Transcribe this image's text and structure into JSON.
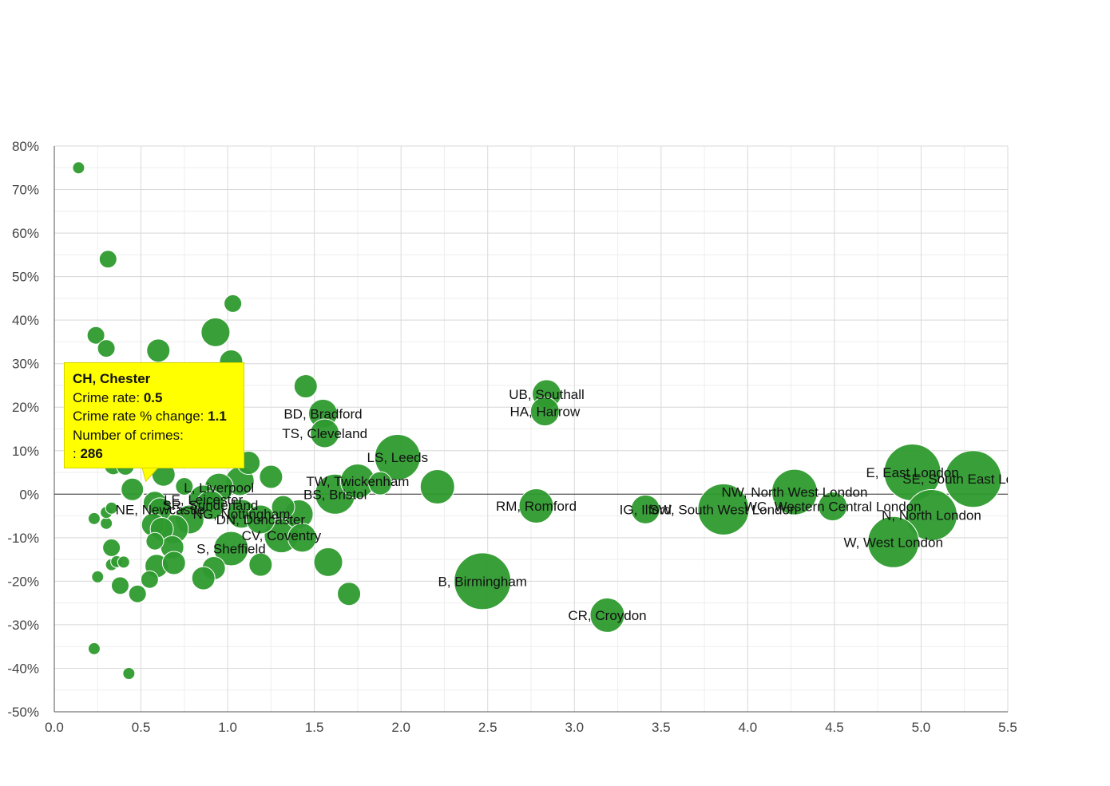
{
  "chart_data": {
    "type": "scatter",
    "subtype": "bubble",
    "title": "",
    "xlabel": "",
    "ylabel": "",
    "xlim": [
      0,
      5.5
    ],
    "ylim": [
      -50,
      80
    ],
    "x_ticks": [
      "0.0",
      "0.5",
      "1.0",
      "1.5",
      "2.0",
      "2.5",
      "3.0",
      "3.5",
      "4.0",
      "4.5",
      "5.0",
      "5.5"
    ],
    "y_ticks": [
      "80%",
      "70%",
      "60%",
      "50%",
      "40%",
      "30%",
      "20%",
      "10%",
      "0%",
      "-10%",
      "-20%",
      "-30%",
      "-40%",
      "-50%"
    ],
    "grid": true,
    "colors": {
      "bubble": "#2e9a2e",
      "tooltip_bg": "#ffff00",
      "grid": "#d9d9d9",
      "axis": "#333333"
    },
    "points": [
      {
        "x": 0.14,
        "y": 75,
        "r": 1
      },
      {
        "x": 0.31,
        "y": 54,
        "r": 2
      },
      {
        "x": 0.24,
        "y": 36.5,
        "r": 2
      },
      {
        "x": 0.3,
        "y": 33.5,
        "r": 2
      },
      {
        "x": 0.6,
        "y": 33,
        "r": 3
      },
      {
        "x": 0.93,
        "y": 37.2,
        "r": 4
      },
      {
        "x": 1.03,
        "y": 43.8,
        "r": 2
      },
      {
        "x": 1.02,
        "y": 30.5,
        "r": 3
      },
      {
        "x": 1.45,
        "y": 24.8,
        "r": 3
      },
      {
        "x": 1.55,
        "y": 18.5,
        "r": 4,
        "label": "BD, Bradford"
      },
      {
        "x": 1.56,
        "y": 14,
        "r": 4,
        "label": "TS, Cleveland"
      },
      {
        "x": 1.98,
        "y": 8.5,
        "r": 7,
        "label": "LS, Leeds"
      },
      {
        "x": 2.21,
        "y": 1.7,
        "r": 5
      },
      {
        "x": 1.88,
        "y": 2.5,
        "r": 3
      },
      {
        "x": 1.75,
        "y": 3,
        "r": 5,
        "label": "TW, Twickenham"
      },
      {
        "x": 1.62,
        "y": 0,
        "r": 6,
        "label": "BS, Bristol"
      },
      {
        "x": 1.25,
        "y": 4,
        "r": 3
      },
      {
        "x": 1.12,
        "y": 7.2,
        "r": 3
      },
      {
        "x": 1.07,
        "y": 3,
        "r": 4
      },
      {
        "x": 0.95,
        "y": 1.5,
        "r": 4,
        "label": "L, Liverpool"
      },
      {
        "x": 0.75,
        "y": 1.8,
        "r": 2
      },
      {
        "x": 0.63,
        "y": 4.5,
        "r": 3
      },
      {
        "x": 0.34,
        "y": 6.5,
        "r": 2
      },
      {
        "x": 0.41,
        "y": 6.4,
        "r": 2
      },
      {
        "x": 0.45,
        "y": 1.1,
        "r": 3
      },
      {
        "x": 0.58,
        "y": -2,
        "r": 3
      },
      {
        "x": 0.61,
        "y": -3.5,
        "r": 3,
        "label": "NE, Newcastle"
      },
      {
        "x": 0.86,
        "y": -1.2,
        "r": 4,
        "label": "LE, Leicester"
      },
      {
        "x": 0.9,
        "y": -2.5,
        "r": 4,
        "label": "SR, Sunderland"
      },
      {
        "x": 1.08,
        "y": -4.5,
        "r": 4,
        "label": "NG, Nottingham"
      },
      {
        "x": 1.19,
        "y": -5.8,
        "r": 4,
        "label": "DN, Doncaster"
      },
      {
        "x": 1.32,
        "y": -3,
        "r": 3
      },
      {
        "x": 1.41,
        "y": -4.6,
        "r": 4
      },
      {
        "x": 0.78,
        "y": -5.8,
        "r": 4
      },
      {
        "x": 0.57,
        "y": -7,
        "r": 3
      },
      {
        "x": 0.62,
        "y": -8,
        "r": 3
      },
      {
        "x": 0.69,
        "y": -8,
        "r": 4
      },
      {
        "x": 0.58,
        "y": -10.8,
        "r": 2
      },
      {
        "x": 0.68,
        "y": -12.2,
        "r": 3
      },
      {
        "x": 1.31,
        "y": -9.5,
        "r": 5,
        "label": "CV, Coventry"
      },
      {
        "x": 1.43,
        "y": -10,
        "r": 4
      },
      {
        "x": 1.02,
        "y": -12.5,
        "r": 5,
        "label": "S, Sheffield"
      },
      {
        "x": 0.59,
        "y": -16.5,
        "r": 3
      },
      {
        "x": 0.69,
        "y": -15.8,
        "r": 3
      },
      {
        "x": 0.92,
        "y": -17,
        "r": 3
      },
      {
        "x": 1.19,
        "y": -16.2,
        "r": 3
      },
      {
        "x": 1.58,
        "y": -15.6,
        "r": 4
      },
      {
        "x": 0.86,
        "y": -19.3,
        "r": 3
      },
      {
        "x": 0.55,
        "y": -19.6,
        "r": 2
      },
      {
        "x": 0.38,
        "y": -21,
        "r": 2
      },
      {
        "x": 0.48,
        "y": -22.9,
        "r": 2
      },
      {
        "x": 1.7,
        "y": -22.9,
        "r": 3
      },
      {
        "x": 0.25,
        "y": -19,
        "r": 1
      },
      {
        "x": 0.33,
        "y": -16.2,
        "r": 1
      },
      {
        "x": 0.36,
        "y": -15.5,
        "r": 1
      },
      {
        "x": 0.4,
        "y": -15.6,
        "r": 1
      },
      {
        "x": 0.33,
        "y": -12.3,
        "r": 2
      },
      {
        "x": 0.23,
        "y": -5.6,
        "r": 1
      },
      {
        "x": 0.3,
        "y": -6.7,
        "r": 1
      },
      {
        "x": 0.3,
        "y": -4.2,
        "r": 1
      },
      {
        "x": 0.33,
        "y": -3.2,
        "r": 1
      },
      {
        "x": 0.23,
        "y": -35.5,
        "r": 1
      },
      {
        "x": 0.43,
        "y": -41.2,
        "r": 1
      },
      {
        "x": 2.47,
        "y": -20,
        "r": 9,
        "label": "B, Birmingham"
      },
      {
        "x": 3.19,
        "y": -27.8,
        "r": 5,
        "label": "CR, Croydon"
      },
      {
        "x": 2.84,
        "y": 23,
        "r": 4,
        "label": "UB, Southall"
      },
      {
        "x": 2.83,
        "y": 19,
        "r": 4,
        "label": "HA, Harrow"
      },
      {
        "x": 2.78,
        "y": -2.7,
        "r": 5,
        "label": "RM, Romford"
      },
      {
        "x": 3.41,
        "y": -3.5,
        "r": 4,
        "label": "IG, Ilford"
      },
      {
        "x": 3.86,
        "y": -3.5,
        "r": 8,
        "label": "SW, South West London"
      },
      {
        "x": 4.27,
        "y": 0.5,
        "r": 7,
        "label": "NW, North West London"
      },
      {
        "x": 4.49,
        "y": -2.8,
        "r": 4,
        "label": "WC, Western Central London"
      },
      {
        "x": 4.95,
        "y": 5,
        "r": 9,
        "label": "E, East London"
      },
      {
        "x": 5.3,
        "y": 3.5,
        "r": 9,
        "label": "SE, South East London"
      },
      {
        "x": 5.06,
        "y": -4.8,
        "r": 8,
        "label": "N, North London"
      },
      {
        "x": 4.84,
        "y": -11,
        "r": 8,
        "label": "W, West London"
      }
    ],
    "tooltip": {
      "title": "CH, Chester",
      "rate_label": "Crime rate:",
      "rate_value": "0.5",
      "change_label": "Crime rate % change:",
      "change_value": "1.1",
      "count_label": "Number of crimes:",
      "count_prefix": ":",
      "count_value": "286"
    }
  }
}
